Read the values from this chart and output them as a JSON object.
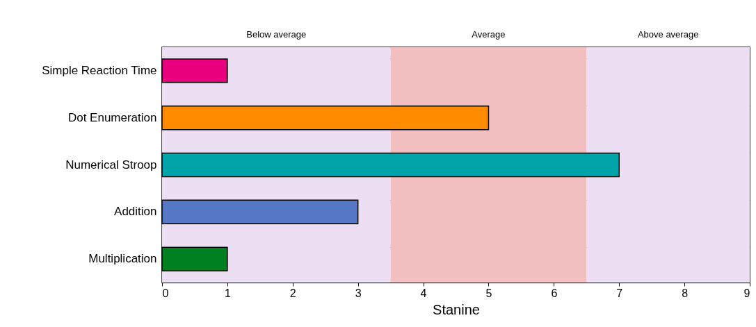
{
  "chart_data": {
    "type": "bar",
    "orientation": "horizontal",
    "xlabel": "Stanine",
    "categories": [
      "Simple Reaction Time",
      "Dot Enumeration",
      "Numerical Stroop",
      "Addition",
      "Multiplication"
    ],
    "values": [
      1,
      5,
      7,
      3,
      1
    ],
    "colors": [
      "#e8007f",
      "#ff8c00",
      "#00a3a8",
      "#5577c6",
      "#008020"
    ],
    "xlim": [
      0,
      9
    ],
    "xticks": [
      0,
      1,
      2,
      3,
      4,
      5,
      6,
      7,
      8,
      9
    ],
    "grid": "y",
    "bands": [
      {
        "axis": "x",
        "from": 0,
        "to": 3.5,
        "label": "Below average",
        "color": "#ecdff3"
      },
      {
        "axis": "x",
        "from": 3.5,
        "to": 6.5,
        "label": "Average",
        "color": "#f2c0c0"
      },
      {
        "axis": "x",
        "from": 6.5,
        "to": 9,
        "label": "Above average",
        "color": "#ecdff3"
      }
    ]
  }
}
